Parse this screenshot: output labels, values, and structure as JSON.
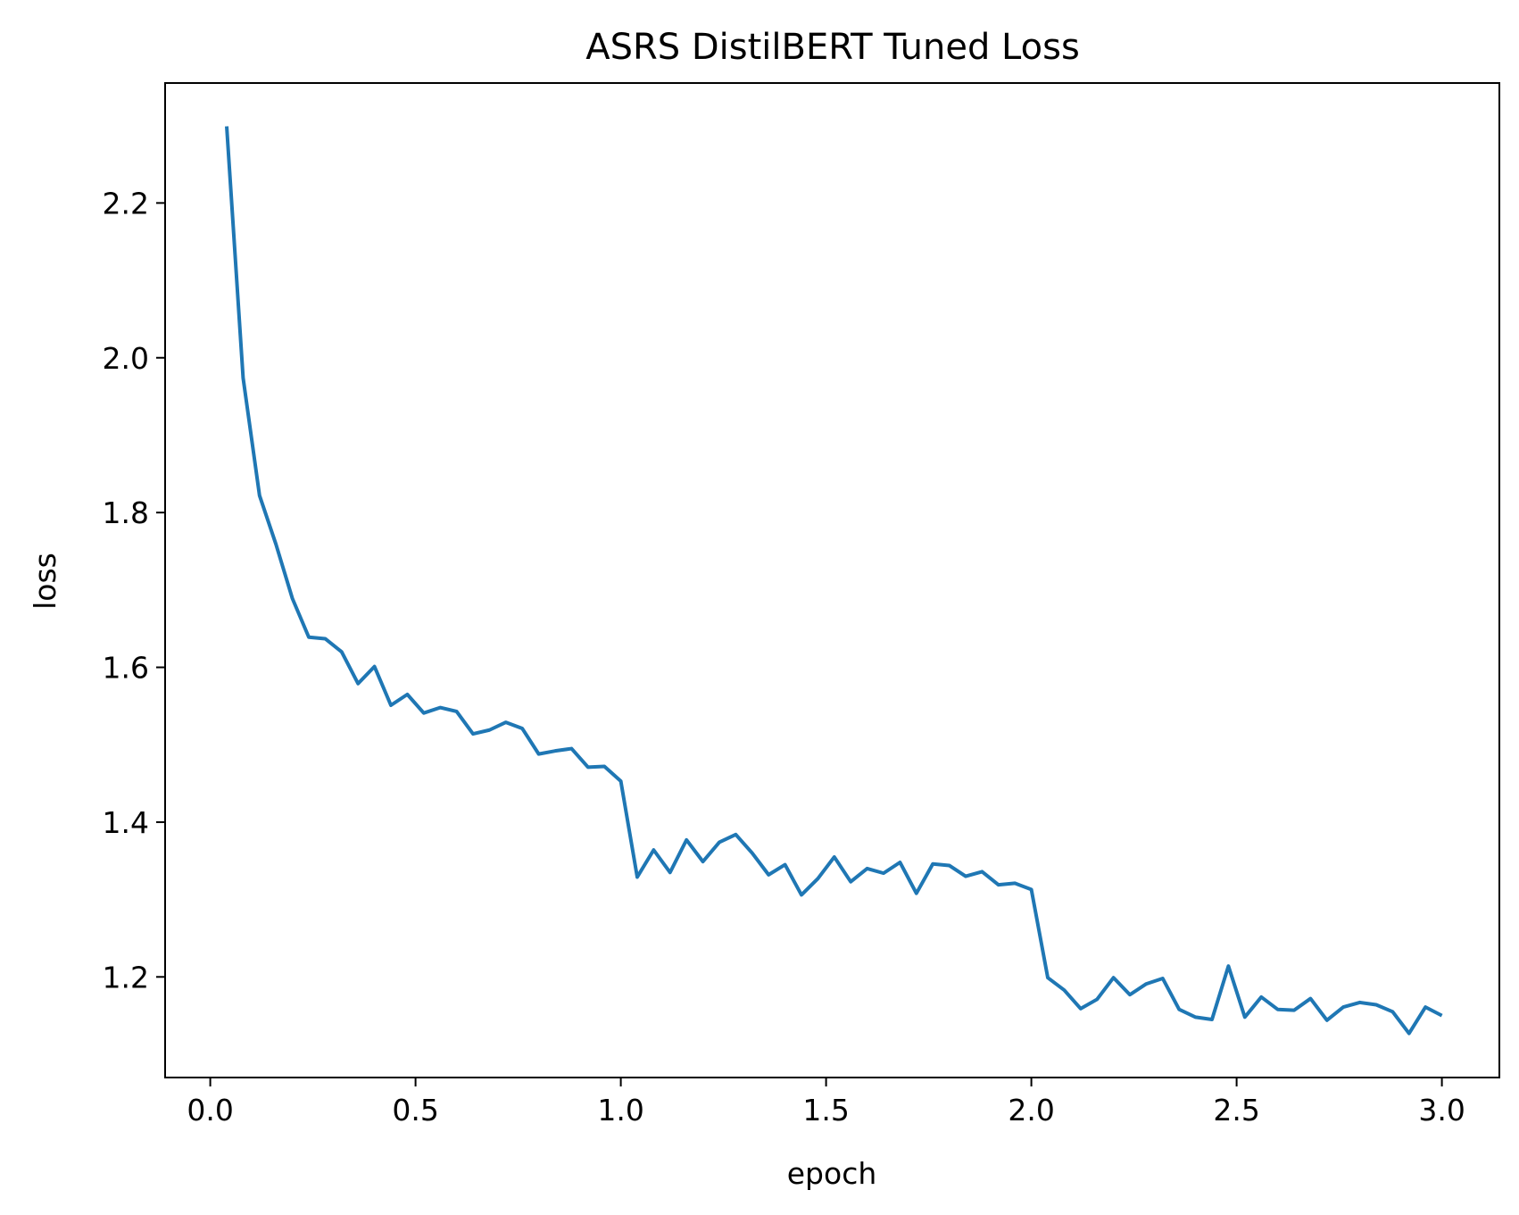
{
  "chart_data": {
    "type": "line",
    "title": "ASRS DistilBERT Tuned Loss",
    "xlabel": "epoch",
    "ylabel": "loss",
    "xlim": [
      -0.11,
      3.14
    ],
    "ylim": [
      1.07,
      2.355
    ],
    "xticks": [
      0.0,
      0.5,
      1.0,
      1.5,
      2.0,
      2.5,
      3.0
    ],
    "xtick_labels": [
      "0.0",
      "0.5",
      "1.0",
      "1.5",
      "2.0",
      "2.5",
      "3.0"
    ],
    "yticks": [
      1.2,
      1.4,
      1.6,
      1.8,
      2.0,
      2.2
    ],
    "ytick_labels": [
      "1.2",
      "1.4",
      "1.6",
      "1.8",
      "2.0",
      "2.2"
    ],
    "grid": false,
    "legend": "none",
    "colors": {
      "series": "#1f77b4",
      "axes": "#000000"
    },
    "series": [
      {
        "x": [
          0.04,
          0.08,
          0.12,
          0.16,
          0.2,
          0.24,
          0.28,
          0.32,
          0.36,
          0.4,
          0.44,
          0.48,
          0.52,
          0.56,
          0.6,
          0.64,
          0.68,
          0.72,
          0.76,
          0.8,
          0.84,
          0.88,
          0.92,
          0.96,
          1.0,
          1.04,
          1.08,
          1.12,
          1.16,
          1.2,
          1.24,
          1.28,
          1.32,
          1.36,
          1.4,
          1.44,
          1.48,
          1.52,
          1.56,
          1.6,
          1.64,
          1.68,
          1.72,
          1.76,
          1.8,
          1.84,
          1.88,
          1.92,
          1.96,
          2.0,
          2.04,
          2.08,
          2.12,
          2.16,
          2.2,
          2.24,
          2.28,
          2.32,
          2.36,
          2.4,
          2.44,
          2.48,
          2.52,
          2.56,
          2.6,
          2.64,
          2.68,
          2.72,
          2.76,
          2.8,
          2.84,
          2.88,
          2.92,
          2.96,
          3.0
        ],
        "y": [
          2.299,
          1.974,
          1.822,
          1.759,
          1.689,
          1.639,
          1.637,
          1.62,
          1.579,
          1.601,
          1.551,
          1.565,
          1.541,
          1.548,
          1.543,
          1.514,
          1.519,
          1.529,
          1.521,
          1.488,
          1.492,
          1.495,
          1.471,
          1.472,
          1.453,
          1.329,
          1.364,
          1.335,
          1.377,
          1.349,
          1.374,
          1.384,
          1.36,
          1.332,
          1.345,
          1.306,
          1.327,
          1.355,
          1.323,
          1.34,
          1.334,
          1.348,
          1.308,
          1.346,
          1.344,
          1.33,
          1.336,
          1.319,
          1.321,
          1.313,
          1.199,
          1.183,
          1.159,
          1.171,
          1.199,
          1.177,
          1.191,
          1.198,
          1.158,
          1.148,
          1.145,
          1.214,
          1.148,
          1.174,
          1.158,
          1.157,
          1.172,
          1.144,
          1.161,
          1.167,
          1.164,
          1.155,
          1.127,
          1.161,
          1.15
        ]
      }
    ]
  }
}
